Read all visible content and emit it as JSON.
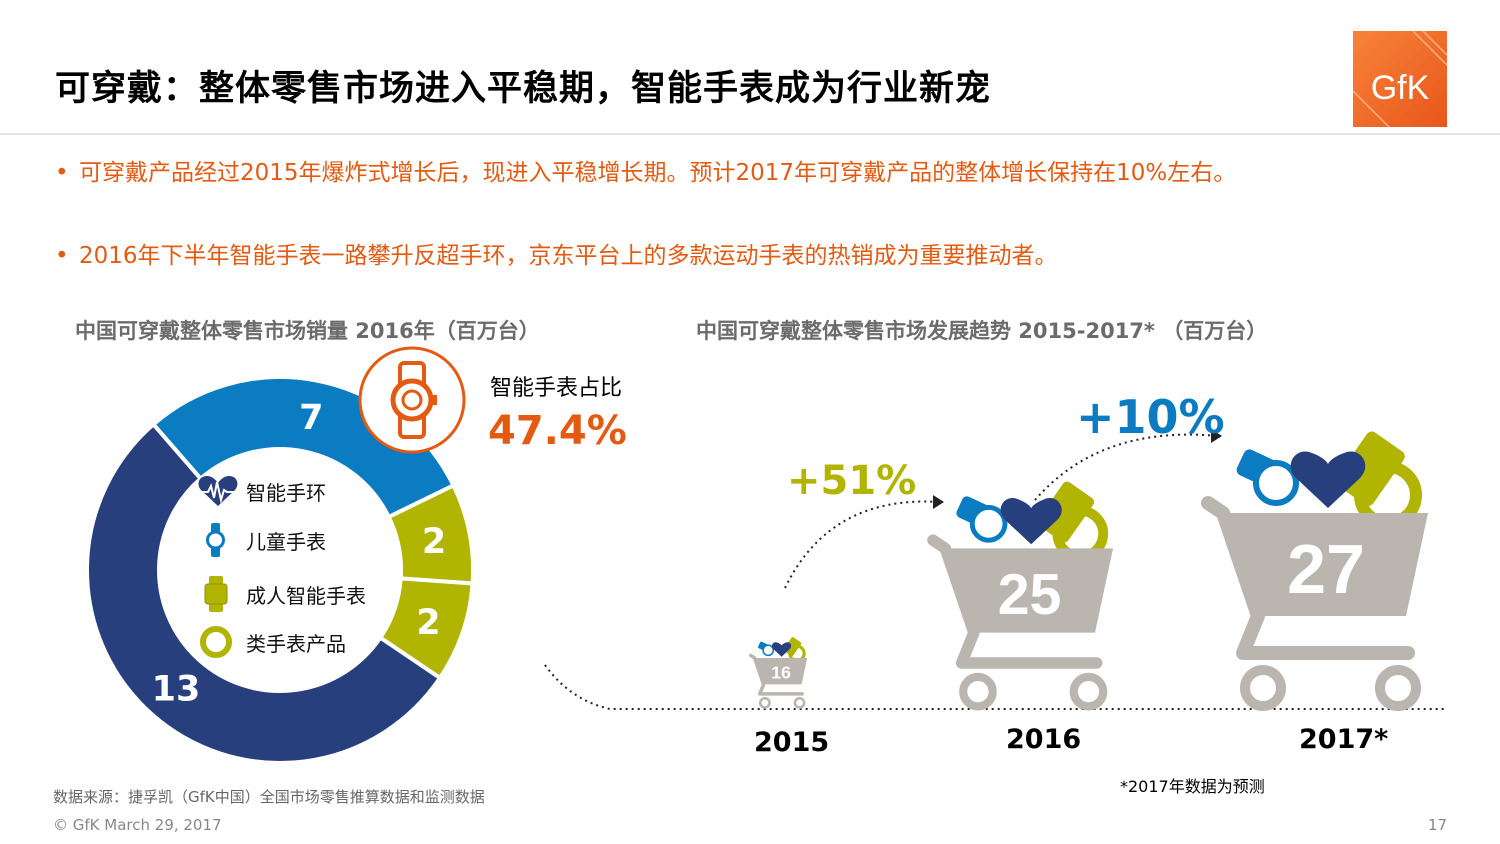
{
  "header": {
    "title": "可穿戴：整体零售市场进入平稳期，智能手表成为行业新宠",
    "logo_text": "GfK"
  },
  "bullets": [
    "可穿戴产品经过2015年爆炸式增长后，现进入平稳增长期。预计2017年可穿戴产品的整体增长保持在10%左右。",
    "2016年下半年智能手表一路攀升反超手环，京东平台上的多款运动手表的热销成为重要推动者。"
  ],
  "bullet_marker": "•",
  "colors": {
    "accent_orange": "#e55a11",
    "blue": "#0b7cc1",
    "olive": "#b1b400",
    "navy": "#283f7e",
    "cart_gray": "#bbb5b0"
  },
  "chart_data": [
    {
      "type": "pie",
      "title": "中国可穿戴整体零售市场销量 2016年（百万台）",
      "slices": [
        {
          "name": "智能手环",
          "value": 7,
          "color": "#0b7cc1",
          "icon": "heart-rate-icon"
        },
        {
          "name": "儿童手表",
          "value": 2,
          "color": "#b1b400",
          "icon": "kids-watch-icon"
        },
        {
          "name": "成人智能手表",
          "value": 2,
          "color": "#b1b400",
          "icon": "smartwatch-icon"
        },
        {
          "name": "类手表产品",
          "value": 13,
          "color": "#283f7e",
          "icon": "ring-icon"
        }
      ],
      "center_legend": [
        {
          "label": "智能手环",
          "icon": "heart-rate-icon"
        },
        {
          "label": "儿童手表",
          "icon": "kids-watch-icon"
        },
        {
          "label": "成人智能手表",
          "icon": "smartwatch-icon"
        },
        {
          "label": "类手表产品",
          "icon": "ring-icon"
        }
      ],
      "callout": {
        "label": "智能手表占比",
        "value": "47.4%",
        "icon": "watch-icon"
      }
    },
    {
      "type": "bar",
      "title": "中国可穿戴整体零售市场发展趋势 2015-2017* （百万台）",
      "categories": [
        "2015",
        "2016",
        "2017*"
      ],
      "values": [
        16,
        25,
        27
      ],
      "growth_labels": [
        {
          "label": "+51%",
          "color": "#b1b400"
        },
        {
          "label": "+10%",
          "color": "#0b7cc1"
        }
      ],
      "note": "*2017年数据为预测"
    }
  ],
  "footer": {
    "source": "数据来源：捷孚凯（GfK中国）全国市场零售推算数据和监测数据",
    "copyright": "© GfK March 29, 2017",
    "page_number": "17"
  }
}
